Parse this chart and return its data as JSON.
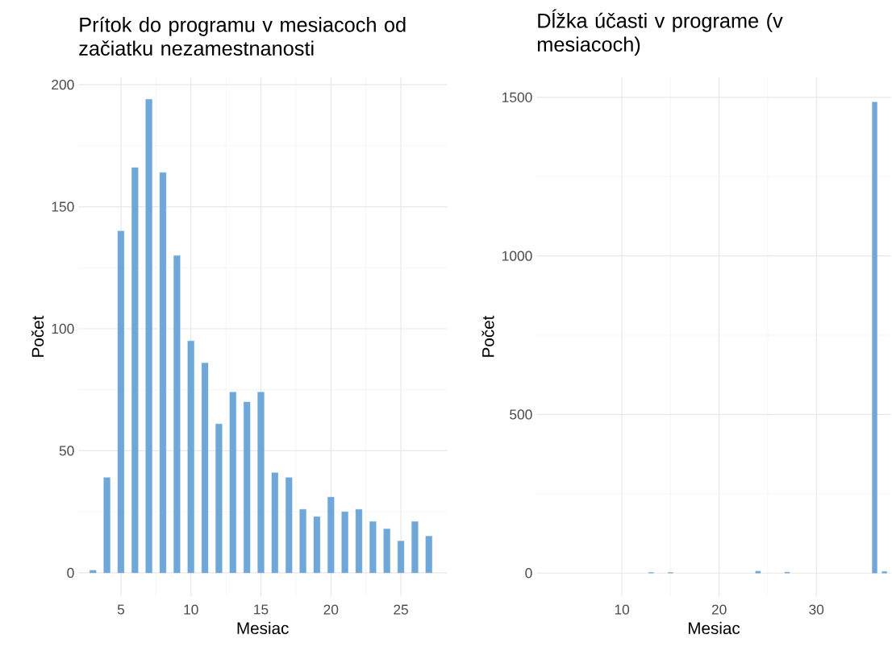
{
  "chart_data": [
    {
      "type": "bar",
      "title": "Prítok do programu v mesiacoch od začiatku nezamestnanosti",
      "xlabel": "Mesiac",
      "ylabel": "Počet",
      "x": [
        3,
        4,
        5,
        6,
        7,
        8,
        9,
        10,
        11,
        12,
        13,
        14,
        15,
        16,
        17,
        18,
        19,
        20,
        21,
        22,
        23,
        24,
        25,
        26,
        27
      ],
      "values": [
        1,
        39,
        140,
        166,
        194,
        164,
        130,
        95,
        86,
        61,
        74,
        70,
        74,
        41,
        39,
        26,
        23,
        31,
        25,
        26,
        21,
        18,
        13,
        21,
        15
      ],
      "color": "#6fa8d8",
      "xlim": [
        1.95,
        28.3
      ],
      "ylim": [
        -9.6,
        203
      ],
      "xticks": [
        5,
        10,
        15,
        20,
        25
      ],
      "yticks": [
        0,
        50,
        100,
        150,
        200
      ],
      "grid": true
    },
    {
      "type": "bar",
      "title": "Dĺžka účasti v programe (v mesiacoch)",
      "xlabel": "Mesiac",
      "ylabel": "Počet",
      "x": [
        13,
        15,
        24,
        27,
        36,
        37
      ],
      "values": [
        2,
        2,
        6,
        3,
        1485,
        5
      ],
      "color": "#6fa8d8",
      "xlim": [
        1.2,
        37.7
      ],
      "ylim": [
        -73,
        1563
      ],
      "xticks": [
        10,
        20,
        30
      ],
      "yticks": [
        0,
        500,
        1000,
        1500
      ],
      "grid": true
    }
  ]
}
